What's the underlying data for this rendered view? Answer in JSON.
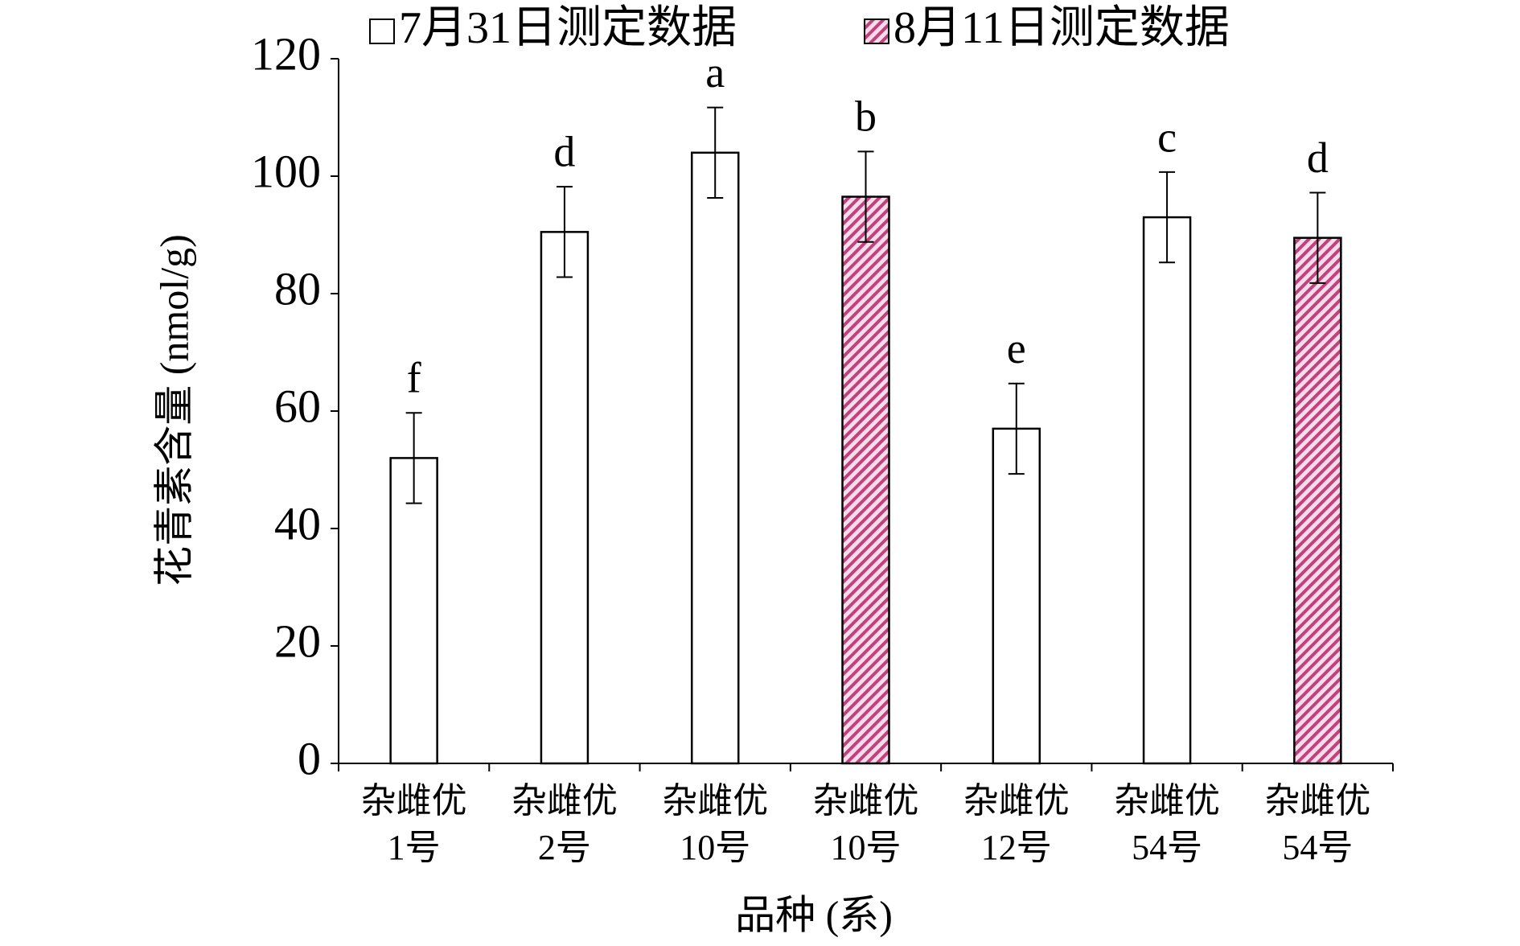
{
  "chart_data": {
    "type": "bar",
    "xlabel": "品种 (系)",
    "ylabel": "花青素含量 (nmol/g)",
    "categories": [
      [
        "杂雌优",
        "1号"
      ],
      [
        "杂雌优",
        "2号"
      ],
      [
        "杂雌优",
        "10号"
      ],
      [
        "杂雌优",
        "10号"
      ],
      [
        "杂雌优",
        "12号"
      ],
      [
        "杂雌优",
        "54号"
      ],
      [
        "杂雌优",
        "54号"
      ]
    ],
    "series": [
      {
        "name": "7月31日测定数据",
        "color": "#ffffff",
        "hatch": false,
        "values": [
          52,
          90.5,
          104,
          null,
          57,
          93,
          null
        ],
        "errors": [
          7.7,
          7.7,
          7.7,
          null,
          7.7,
          7.7,
          null
        ],
        "letters": [
          "f",
          "d",
          "a",
          null,
          "e",
          "c",
          null
        ]
      },
      {
        "name": "8月11日测定数据",
        "color": "#c2407e",
        "hatch": true,
        "values": [
          null,
          null,
          null,
          96.5,
          null,
          null,
          89.5
        ],
        "errors": [
          null,
          null,
          null,
          7.7,
          null,
          null,
          7.7
        ],
        "letters": [
          null,
          null,
          null,
          "b",
          null,
          null,
          "d"
        ]
      }
    ],
    "ylim": [
      0,
      120
    ],
    "yticks": [
      0,
      20,
      40,
      60,
      80,
      100,
      120
    ],
    "legend": "top"
  }
}
